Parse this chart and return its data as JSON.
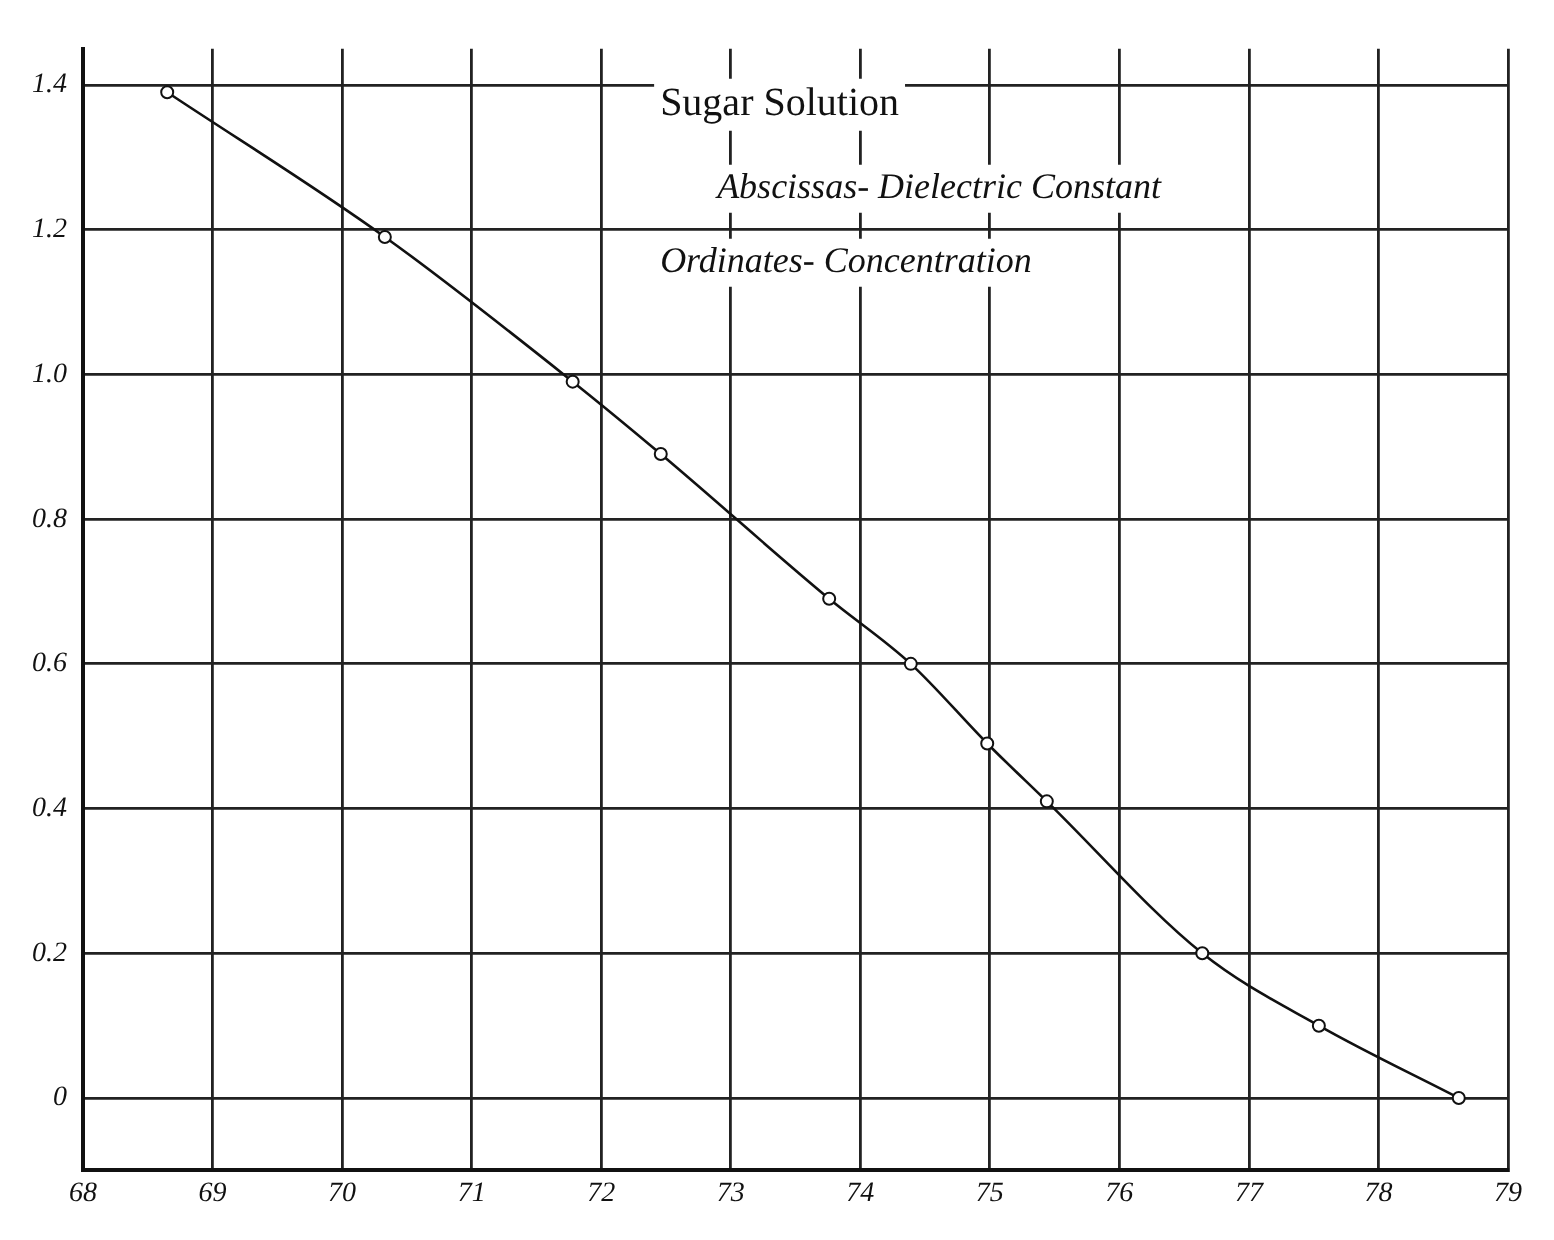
{
  "chart_data": {
    "type": "line",
    "title": "Sugar Solution",
    "annotations": [
      "Abscissas- Dielectric Constant",
      "Ordinates- Concentration"
    ],
    "x": [
      68.65,
      70.33,
      71.78,
      72.46,
      73.76,
      74.39,
      74.98,
      75.44,
      76.64,
      77.54,
      78.62
    ],
    "series": [
      {
        "color": "#111111",
        "values": [
          1.39,
          1.19,
          0.99,
          0.89,
          0.69,
          0.6,
          0.49,
          0.41,
          0.2,
          0.1,
          0.0
        ]
      }
    ],
    "xlim": [
      68,
      79
    ],
    "xticks": [
      68,
      69,
      70,
      71,
      72,
      73,
      74,
      75,
      76,
      77,
      78,
      79
    ],
    "ylim": [
      -0.1,
      1.45
    ],
    "yticks": [
      {
        "value": 0,
        "label": "0"
      },
      {
        "value": 0.2,
        "label": "0.2"
      },
      {
        "value": 0.4,
        "label": "0.4"
      },
      {
        "value": 0.6,
        "label": "0.6"
      },
      {
        "value": 0.8,
        "label": "0.8"
      },
      {
        "value": 1.0,
        "label": "1.0"
      },
      {
        "value": 1.2,
        "label": "1.2"
      },
      {
        "value": 1.4,
        "label": "1.4"
      }
    ],
    "grid": true,
    "legend": false,
    "marker": "circle",
    "line_style": "solid"
  }
}
